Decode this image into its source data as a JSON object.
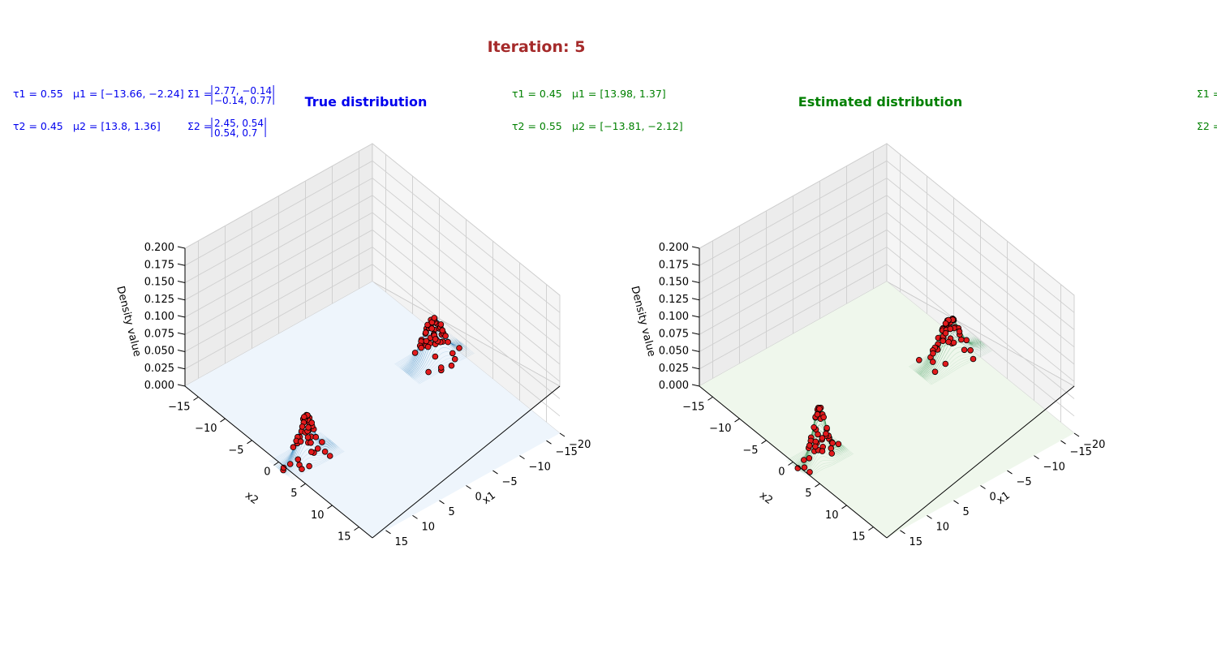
{
  "chart_data": {
    "type": "3d-surface-scatter",
    "title": "Iteration: 5",
    "colors": {
      "title": "#a52a2a",
      "true": "#0000ee",
      "estimated": "#008000",
      "points": "#e31a1c",
      "true_surface": "#1f77b4",
      "estimated_surface": "#238b45"
    },
    "panels": [
      {
        "id": "true",
        "title": "True distribution",
        "xlabel": "x1",
        "ylabel": "x2",
        "zlabel": "Density value",
        "xlim": [
          -20,
          18
        ],
        "ylim": [
          -18,
          18
        ],
        "zlim": [
          0,
          0.2
        ],
        "xticks": [
          "−20",
          "−15",
          "−10",
          "−5",
          "0",
          "5",
          "10",
          "15"
        ],
        "yticks": [
          "−15",
          "−10",
          "−5",
          "0",
          "5",
          "10",
          "15"
        ],
        "zticks": [
          "0.000",
          "0.025",
          "0.050",
          "0.075",
          "0.100",
          "0.125",
          "0.150",
          "0.175",
          "0.200"
        ],
        "params": [
          {
            "tau_name": "τ1",
            "tau": "0.55",
            "mu_name": "μ1",
            "mu": "[−13.66, −2.24]",
            "sigma_name": "Σ1",
            "sigma_row1": "2.77, −0.14",
            "sigma_row2": "−0.14, 0.77"
          },
          {
            "tau_name": "τ2",
            "tau": "0.45",
            "mu_name": "μ2",
            "mu": "[13.8, 1.36]",
            "sigma_name": "Σ2",
            "sigma_row1": "2.45, 0.54",
            "sigma_row2": "0.54, 0.7"
          }
        ],
        "components": [
          {
            "mu": [
              -13.66,
              -2.24
            ],
            "sigma": [
              [
                2.77,
                -0.14
              ],
              [
                -0.14,
                0.77
              ]
            ],
            "tau": 0.55
          },
          {
            "mu": [
              13.8,
              1.36
            ],
            "sigma": [
              [
                2.45,
                0.54
              ],
              [
                0.54,
                0.7
              ]
            ],
            "tau": 0.45
          }
        ]
      },
      {
        "id": "estimated",
        "title": "Estimated distribution",
        "xlabel": "x1",
        "ylabel": "x2",
        "zlabel": "Density value",
        "xlim": [
          -20,
          18
        ],
        "ylim": [
          -18,
          18
        ],
        "zlim": [
          0,
          0.2
        ],
        "xticks": [
          "−20",
          "−15",
          "−10",
          "−5",
          "0",
          "5",
          "10",
          "15"
        ],
        "yticks": [
          "−15",
          "−10",
          "−5",
          "0",
          "5",
          "10",
          "15"
        ],
        "zticks": [
          "0.000",
          "0.025",
          "0.050",
          "0.075",
          "0.100",
          "0.125",
          "0.150",
          "0.175",
          "0.200"
        ],
        "params": [
          {
            "tau_name": "τ1",
            "tau": "0.45",
            "mu_name": "μ1",
            "mu": "[13.98, 1.37]",
            "sigma_name": "Σ1",
            "sigma_row1": "1.81, 0.52",
            "sigma_row2": "0.52, 0.65"
          },
          {
            "tau_name": "τ2",
            "tau": "0.55",
            "mu_name": "μ2",
            "mu": "[−13.81, −2.12]",
            "sigma_name": "Σ2",
            "sigma_row1": "3.41, −0.08",
            "sigma_row2": "−0.08, 0.64"
          }
        ],
        "components": [
          {
            "mu": [
              13.98,
              1.37
            ],
            "sigma": [
              [
                1.81,
                0.52
              ],
              [
                0.52,
                0.65
              ]
            ],
            "tau": 0.45
          },
          {
            "mu": [
              -13.81,
              -2.12
            ],
            "sigma": [
              [
                3.41,
                -0.08
              ],
              [
                -0.08,
                0.64
              ]
            ],
            "tau": 0.55
          }
        ]
      }
    ]
  }
}
